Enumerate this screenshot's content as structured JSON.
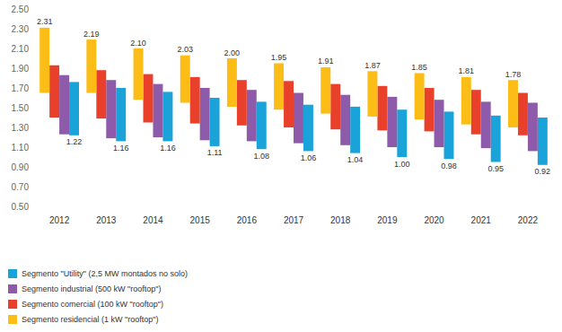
{
  "chart_data": {
    "type": "range_bar",
    "categories": [
      "2012",
      "2013",
      "2014",
      "2015",
      "2016",
      "2017",
      "2018",
      "2019",
      "2020",
      "2021",
      "2022"
    ],
    "series": [
      {
        "name": "Segmento \"Utility\" (2,5 MW montados no solo)",
        "color": "#1aa3d9",
        "low": [
          1.22,
          1.16,
          1.16,
          1.11,
          1.08,
          1.06,
          1.04,
          1.0,
          0.98,
          0.95,
          0.92
        ],
        "high": [
          1.76,
          1.7,
          1.66,
          1.6,
          1.56,
          1.53,
          1.51,
          1.48,
          1.46,
          1.42,
          1.4
        ],
        "low_labels": [
          "1.22",
          "1.16",
          "1.16",
          "1.11",
          "1.08",
          "1.06",
          "1.04",
          "1.00",
          "0.98",
          "0.95",
          "0.92"
        ]
      },
      {
        "name": "Segmento industrial (500 kW \"rooftop\")",
        "color": "#8e5bab",
        "low": [
          1.23,
          1.19,
          1.2,
          1.17,
          1.16,
          1.14,
          1.12,
          1.1,
          1.1,
          1.09,
          1.06
        ],
        "high": [
          1.83,
          1.78,
          1.74,
          1.7,
          1.68,
          1.65,
          1.63,
          1.61,
          1.58,
          1.56,
          1.55
        ]
      },
      {
        "name": "Segmento comercial (100 kW \"rooftop\")",
        "color": "#e8402a",
        "low": [
          1.4,
          1.39,
          1.35,
          1.34,
          1.32,
          1.3,
          1.28,
          1.27,
          1.26,
          1.23,
          1.22
        ],
        "high": [
          1.93,
          1.88,
          1.84,
          1.81,
          1.78,
          1.77,
          1.74,
          1.72,
          1.7,
          1.68,
          1.65
        ]
      },
      {
        "name": "Segmento residencial (1 kW \"rooftop\")",
        "color": "#fbbd16",
        "low": [
          1.65,
          1.65,
          1.58,
          1.55,
          1.51,
          1.48,
          1.44,
          1.41,
          1.38,
          1.33,
          1.3
        ],
        "high": [
          2.31,
          2.19,
          2.1,
          2.03,
          2.0,
          1.95,
          1.91,
          1.87,
          1.85,
          1.81,
          1.78
        ],
        "high_labels": [
          "2.31",
          "2.19",
          "2.10",
          "2.03",
          "2.00",
          "1.95",
          "1.91",
          "1.87",
          "1.85",
          "1.81",
          "1.78"
        ]
      }
    ],
    "ylim": [
      0.5,
      2.5
    ],
    "yticks": [
      {
        "value": 0.5,
        "label": "0.50"
      },
      {
        "value": 0.7,
        "label": "0.70"
      },
      {
        "value": 0.9,
        "label": "0.90"
      },
      {
        "value": 1.1,
        "label": "1.10"
      },
      {
        "value": 1.3,
        "label": "1.30"
      },
      {
        "value": 1.5,
        "label": "1.50"
      },
      {
        "value": 1.7,
        "label": "1.70"
      },
      {
        "value": 1.9,
        "label": "1.90"
      },
      {
        "value": 2.1,
        "label": "2.10"
      },
      {
        "value": 2.3,
        "label": "2.30"
      },
      {
        "value": 2.5,
        "label": "2.50"
      }
    ],
    "grid": false,
    "legend": "bottom-left",
    "data_labels": true
  }
}
